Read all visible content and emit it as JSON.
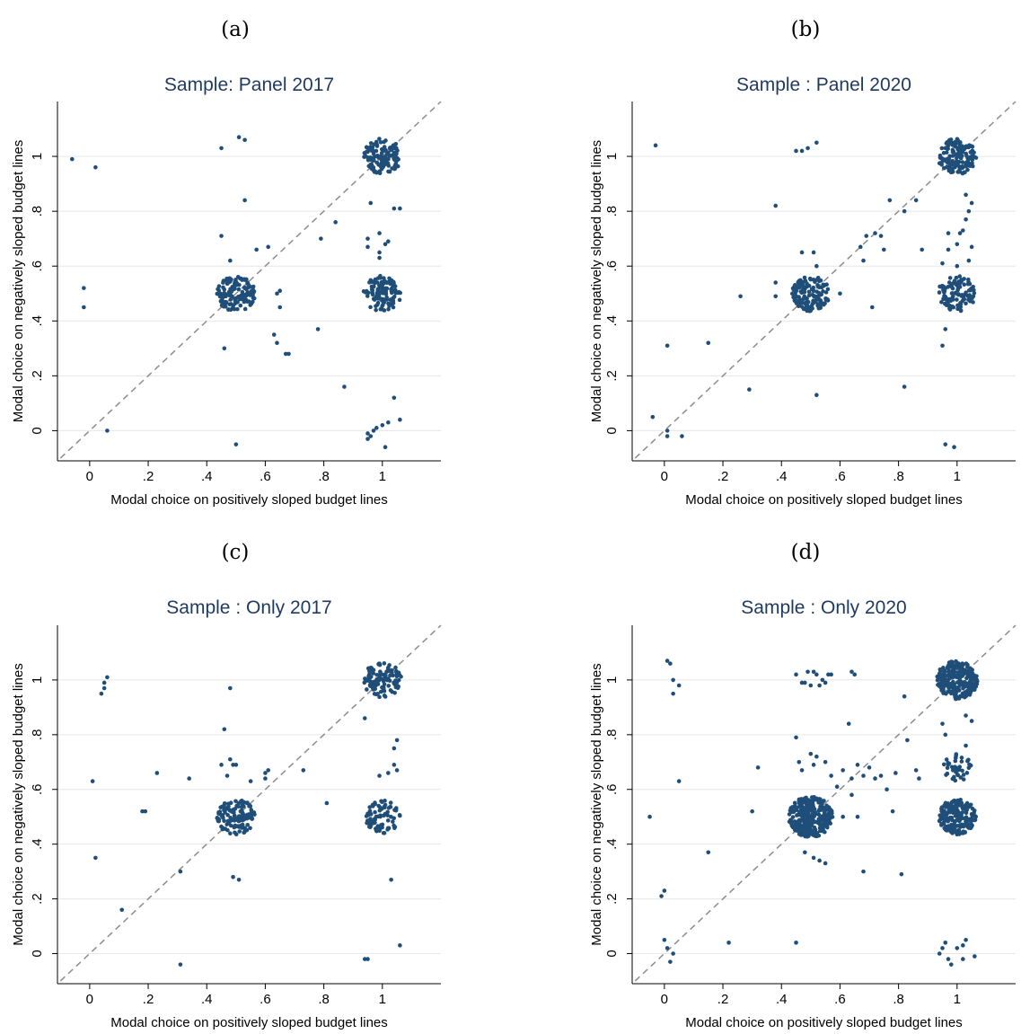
{
  "colors": {
    "marker": "#1f4e79",
    "diagonal": "#8c8c8c",
    "grid": "#e6e6e6",
    "title": "#1f3a5f",
    "axis": "#000000"
  },
  "chart_data": [
    {
      "type": "scatter",
      "panel": "(a)",
      "title": "Sample: Panel 2017",
      "xlabel": "Modal choice on positively sloped budget lines",
      "ylabel": "Modal choice on negatively sloped budget lines",
      "xticks": [
        "0",
        ".2",
        ".4",
        ".6",
        ".8",
        "1"
      ],
      "yticks": [
        "0",
        ".2",
        ".4",
        ".6",
        ".8",
        "1"
      ],
      "xlim": [
        -0.11,
        1.2
      ],
      "ylim": [
        -0.11,
        1.2
      ],
      "grid": "horizontal",
      "diagonal": "45-degree dashed line",
      "clusters": [
        {
          "x": 0.5,
          "y": 0.5,
          "n": 130,
          "r": 0.065
        },
        {
          "x": 1.0,
          "y": 1.0,
          "n": 130,
          "r": 0.065
        },
        {
          "x": 1.0,
          "y": 0.5,
          "n": 110,
          "r": 0.065
        }
      ],
      "points": [
        [
          -0.06,
          0.99
        ],
        [
          0.02,
          0.96
        ],
        [
          -0.02,
          0.52
        ],
        [
          -0.02,
          0.45
        ],
        [
          0.06,
          0.0
        ],
        [
          0.45,
          1.03
        ],
        [
          0.51,
          1.07
        ],
        [
          0.53,
          1.06
        ],
        [
          0.53,
          0.84
        ],
        [
          0.45,
          0.71
        ],
        [
          0.57,
          0.66
        ],
        [
          0.61,
          0.67
        ],
        [
          0.48,
          0.62
        ],
        [
          0.46,
          0.3
        ],
        [
          0.5,
          -0.05
        ],
        [
          0.64,
          0.5
        ],
        [
          0.65,
          0.51
        ],
        [
          0.65,
          0.45
        ],
        [
          0.63,
          0.35
        ],
        [
          0.64,
          0.32
        ],
        [
          0.67,
          0.28
        ],
        [
          0.68,
          0.28
        ],
        [
          0.79,
          0.7
        ],
        [
          0.84,
          0.76
        ],
        [
          0.78,
          0.37
        ],
        [
          0.87,
          0.16
        ],
        [
          0.96,
          0.83
        ],
        [
          0.95,
          0.67
        ],
        [
          0.95,
          0.7
        ],
        [
          0.99,
          0.65
        ],
        [
          0.99,
          0.63
        ],
        [
          0.99,
          0.72
        ],
        [
          1.01,
          0.68
        ],
        [
          1.02,
          0.69
        ],
        [
          1.04,
          0.81
        ],
        [
          1.06,
          0.81
        ],
        [
          1.04,
          0.12
        ],
        [
          1.06,
          0.04
        ],
        [
          0.95,
          -0.01
        ],
        [
          0.96,
          -0.02
        ],
        [
          0.97,
          0.0
        ],
        [
          0.98,
          0.01
        ],
        [
          1.0,
          0.02
        ],
        [
          1.02,
          0.03
        ],
        [
          1.01,
          -0.06
        ],
        [
          0.95,
          -0.03
        ]
      ]
    },
    {
      "type": "scatter",
      "panel": "(b)",
      "title": "Sample : Panel 2020",
      "xlabel": "Modal choice on positively sloped budget lines",
      "ylabel": "Modal choice on negatively sloped budget lines",
      "xticks": [
        "0",
        ".2",
        ".4",
        ".6",
        ".8",
        "1"
      ],
      "yticks": [
        "0",
        ".2",
        ".4",
        ".6",
        ".8",
        "1"
      ],
      "xlim": [
        -0.11,
        1.2
      ],
      "ylim": [
        -0.11,
        1.2
      ],
      "grid": "horizontal",
      "diagonal": "45-degree dashed line",
      "clusters": [
        {
          "x": 0.5,
          "y": 0.5,
          "n": 140,
          "r": 0.065
        },
        {
          "x": 1.0,
          "y": 1.0,
          "n": 140,
          "r": 0.065
        },
        {
          "x": 1.0,
          "y": 0.5,
          "n": 100,
          "r": 0.065
        }
      ],
      "points": [
        [
          -0.03,
          1.04
        ],
        [
          0.45,
          1.02
        ],
        [
          0.47,
          1.02
        ],
        [
          0.49,
          1.03
        ],
        [
          0.52,
          1.05
        ],
        [
          0.38,
          0.82
        ],
        [
          0.26,
          0.49
        ],
        [
          0.38,
          0.54
        ],
        [
          0.38,
          0.49
        ],
        [
          0.47,
          0.65
        ],
        [
          0.51,
          0.65
        ],
        [
          0.52,
          0.6
        ],
        [
          0.6,
          0.5
        ],
        [
          0.68,
          0.62
        ],
        [
          0.67,
          0.67
        ],
        [
          0.69,
          0.71
        ],
        [
          0.71,
          0.45
        ],
        [
          0.72,
          0.72
        ],
        [
          0.74,
          0.71
        ],
        [
          0.75,
          0.66
        ],
        [
          0.77,
          0.84
        ],
        [
          0.82,
          0.8
        ],
        [
          0.86,
          0.84
        ],
        [
          0.88,
          0.66
        ],
        [
          0.95,
          0.61
        ],
        [
          0.97,
          0.66
        ],
        [
          0.97,
          0.72
        ],
        [
          1.0,
          0.6
        ],
        [
          1.0,
          0.68
        ],
        [
          1.01,
          0.72
        ],
        [
          1.02,
          0.73
        ],
        [
          1.03,
          0.77
        ],
        [
          1.04,
          0.8
        ],
        [
          1.05,
          0.83
        ],
        [
          1.03,
          0.86
        ],
        [
          1.05,
          0.67
        ],
        [
          1.04,
          0.62
        ],
        [
          0.96,
          0.37
        ],
        [
          0.95,
          0.31
        ],
        [
          -0.04,
          0.05
        ],
        [
          0.01,
          0.31
        ],
        [
          0.15,
          0.32
        ],
        [
          0.29,
          0.15
        ],
        [
          0.52,
          0.13
        ],
        [
          0.82,
          0.16
        ],
        [
          0.01,
          0.0
        ],
        [
          0.01,
          -0.02
        ],
        [
          0.06,
          -0.02
        ],
        [
          0.96,
          -0.05
        ],
        [
          0.99,
          -0.06
        ]
      ]
    },
    {
      "type": "scatter",
      "panel": "(c)",
      "title": "Sample : Only 2017",
      "xlabel": "Modal choice on positively sloped budget lines",
      "ylabel": "Modal choice on negatively sloped budget lines",
      "xticks": [
        "0",
        ".2",
        ".4",
        ".6",
        ".8",
        "1"
      ],
      "yticks": [
        "0",
        ".2",
        ".4",
        ".6",
        ".8",
        "1"
      ],
      "xlim": [
        -0.11,
        1.2
      ],
      "ylim": [
        -0.11,
        1.2
      ],
      "grid": "horizontal",
      "diagonal": "45-degree dashed line",
      "clusters": [
        {
          "x": 0.5,
          "y": 0.5,
          "n": 130,
          "r": 0.065
        },
        {
          "x": 1.0,
          "y": 1.0,
          "n": 110,
          "r": 0.065
        },
        {
          "x": 1.0,
          "y": 0.5,
          "n": 80,
          "r": 0.06
        }
      ],
      "points": [
        [
          0.04,
          0.95
        ],
        [
          0.05,
          0.97
        ],
        [
          0.05,
          0.99
        ],
        [
          0.06,
          1.01
        ],
        [
          0.01,
          0.63
        ],
        [
          0.02,
          0.35
        ],
        [
          0.11,
          0.16
        ],
        [
          0.18,
          0.52
        ],
        [
          0.19,
          0.52
        ],
        [
          0.23,
          0.66
        ],
        [
          0.34,
          0.64
        ],
        [
          0.31,
          0.3
        ],
        [
          0.31,
          -0.04
        ],
        [
          0.48,
          0.97
        ],
        [
          0.46,
          0.82
        ],
        [
          0.45,
          0.69
        ],
        [
          0.48,
          0.71
        ],
        [
          0.49,
          0.69
        ],
        [
          0.5,
          0.69
        ],
        [
          0.47,
          0.65
        ],
        [
          0.49,
          0.28
        ],
        [
          0.51,
          0.27
        ],
        [
          0.55,
          0.63
        ],
        [
          0.6,
          0.64
        ],
        [
          0.61,
          0.67
        ],
        [
          0.6,
          0.66
        ],
        [
          0.73,
          0.67
        ],
        [
          0.81,
          0.55
        ],
        [
          0.94,
          0.86
        ],
        [
          1.02,
          0.66
        ],
        [
          1.04,
          0.69
        ],
        [
          1.05,
          0.67
        ],
        [
          1.05,
          0.78
        ],
        [
          1.04,
          0.75
        ],
        [
          0.99,
          0.65
        ],
        [
          1.03,
          0.27
        ],
        [
          1.06,
          0.03
        ],
        [
          0.94,
          -0.02
        ],
        [
          0.95,
          -0.02
        ]
      ]
    },
    {
      "type": "scatter",
      "panel": "(d)",
      "title": "Sample : Only 2020",
      "xlabel": "Modal choice on positively sloped budget lines",
      "ylabel": "Modal choice on negatively sloped budget lines",
      "xticks": [
        "0",
        ".2",
        ".4",
        ".6",
        ".8",
        "1"
      ],
      "yticks": [
        "0",
        ".2",
        ".4",
        ".6",
        ".8",
        "1"
      ],
      "xlim": [
        -0.11,
        1.2
      ],
      "ylim": [
        -0.11,
        1.2
      ],
      "grid": "horizontal",
      "diagonal": "45-degree dashed line",
      "clusters": [
        {
          "x": 0.5,
          "y": 0.5,
          "n": 320,
          "r": 0.075
        },
        {
          "x": 1.0,
          "y": 1.0,
          "n": 260,
          "r": 0.07
        },
        {
          "x": 1.0,
          "y": 0.5,
          "n": 200,
          "r": 0.065
        },
        {
          "x": 1.0,
          "y": 0.68,
          "n": 40,
          "r": 0.05
        }
      ],
      "points": [
        [
          0.01,
          1.07
        ],
        [
          0.02,
          1.06
        ],
        [
          0.03,
          1.0
        ],
        [
          0.03,
          0.95
        ],
        [
          0.05,
          0.98
        ],
        [
          0.05,
          0.63
        ],
        [
          -0.05,
          0.5
        ],
        [
          0.15,
          0.37
        ],
        [
          -0.01,
          0.21
        ],
        [
          0.0,
          0.23
        ],
        [
          0.0,
          0.05
        ],
        [
          0.01,
          0.02
        ],
        [
          0.03,
          0.0
        ],
        [
          0.02,
          -0.03
        ],
        [
          0.22,
          0.04
        ],
        [
          0.3,
          0.52
        ],
        [
          0.32,
          0.68
        ],
        [
          0.45,
          0.04
        ],
        [
          0.45,
          1.02
        ],
        [
          0.47,
          0.99
        ],
        [
          0.49,
          1.03
        ],
        [
          0.51,
          1.03
        ],
        [
          0.52,
          1.02
        ],
        [
          0.54,
          1.0
        ],
        [
          0.56,
          1.02
        ],
        [
          0.48,
          0.99
        ],
        [
          0.5,
          0.98
        ],
        [
          0.53,
          0.98
        ],
        [
          0.55,
          0.99
        ],
        [
          0.57,
          1.02
        ],
        [
          0.64,
          1.03
        ],
        [
          0.65,
          1.02
        ],
        [
          0.45,
          0.79
        ],
        [
          0.46,
          0.7
        ],
        [
          0.47,
          0.67
        ],
        [
          0.5,
          0.73
        ],
        [
          0.51,
          0.69
        ],
        [
          0.52,
          0.72
        ],
        [
          0.55,
          0.7
        ],
        [
          0.57,
          0.65
        ],
        [
          0.59,
          0.61
        ],
        [
          0.61,
          0.67
        ],
        [
          0.63,
          0.84
        ],
        [
          0.64,
          0.64
        ],
        [
          0.66,
          0.69
        ],
        [
          0.68,
          0.65
        ],
        [
          0.7,
          0.68
        ],
        [
          0.72,
          0.64
        ],
        [
          0.74,
          0.65
        ],
        [
          0.76,
          0.6
        ],
        [
          0.79,
          0.66
        ],
        [
          0.78,
          0.52
        ],
        [
          0.82,
          0.94
        ],
        [
          0.83,
          0.78
        ],
        [
          0.86,
          0.67
        ],
        [
          0.87,
          0.64
        ],
        [
          0.64,
          0.58
        ],
        [
          0.66,
          0.5
        ],
        [
          0.61,
          0.5
        ],
        [
          0.48,
          0.37
        ],
        [
          0.51,
          0.35
        ],
        [
          0.53,
          0.34
        ],
        [
          0.55,
          0.33
        ],
        [
          0.68,
          0.3
        ],
        [
          0.81,
          0.29
        ],
        [
          0.95,
          0.84
        ],
        [
          0.96,
          0.8
        ],
        [
          1.03,
          0.87
        ],
        [
          1.05,
          0.85
        ],
        [
          1.03,
          0.76
        ],
        [
          0.94,
          0.0
        ],
        [
          0.95,
          0.02
        ],
        [
          0.96,
          0.04
        ],
        [
          0.97,
          -0.02
        ],
        [
          0.98,
          -0.04
        ],
        [
          1.0,
          0.02
        ],
        [
          1.02,
          0.03
        ],
        [
          1.02,
          -0.02
        ],
        [
          1.03,
          0.05
        ],
        [
          1.06,
          -0.01
        ]
      ]
    }
  ]
}
